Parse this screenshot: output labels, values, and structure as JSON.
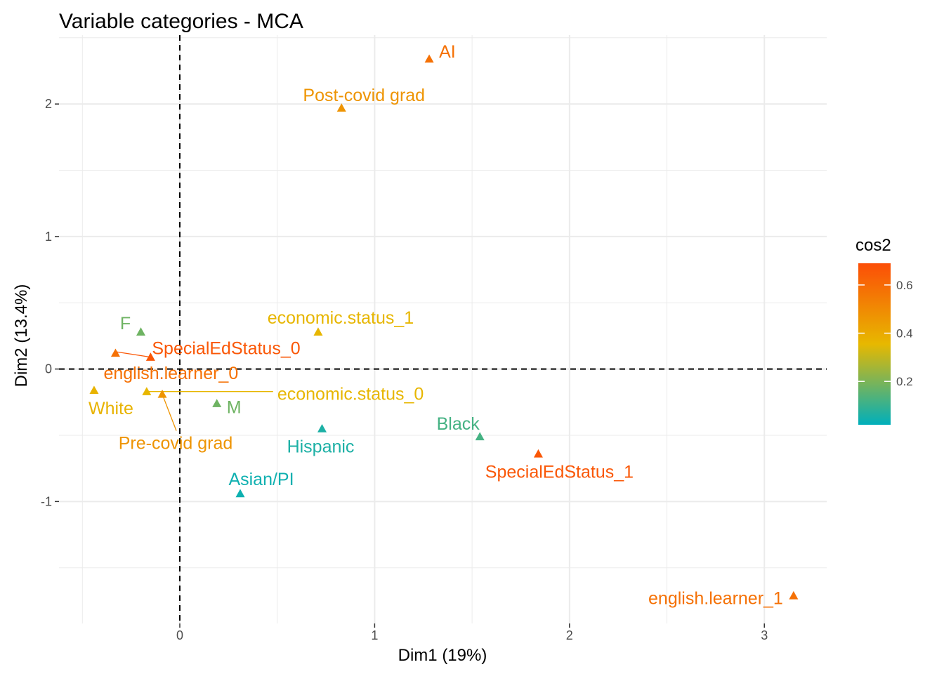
{
  "chart_data": {
    "type": "scatter",
    "title": "Variable categories - MCA",
    "xlabel": "Dim1 (19%)",
    "ylabel": "Dim2 (13.4%)",
    "xlim": [
      -0.62,
      3.32
    ],
    "ylim": [
      -1.92,
      2.52
    ],
    "x_ticks": [
      0,
      1,
      2,
      3
    ],
    "x_tick_labels": [
      "0",
      "1",
      "2",
      "3"
    ],
    "y_ticks": [
      -1,
      0,
      1,
      2
    ],
    "y_tick_labels": [
      "-1",
      "0",
      "1",
      "2"
    ],
    "grid": true,
    "reference_lines": {
      "x": 0,
      "y": 0,
      "style": "dashed"
    },
    "marker": "triangle",
    "color_variable": "cos2",
    "points": [
      {
        "label": "AI",
        "x": 1.28,
        "y": 2.34,
        "cos2": 0.58
      },
      {
        "label": "Post-covid grad",
        "x": 0.83,
        "y": 1.97,
        "cos2": 0.47
      },
      {
        "label": "F",
        "x": -0.2,
        "y": 0.28,
        "cos2": 0.18
      },
      {
        "label": "SpecialEdStatus_0",
        "x": -0.15,
        "y": 0.09,
        "cos2": 0.66
      },
      {
        "label": "economic.status_1",
        "x": 0.71,
        "y": 0.28,
        "cos2": 0.36
      },
      {
        "label": "english.learner_0",
        "x": -0.33,
        "y": 0.12,
        "cos2": 0.58
      },
      {
        "label": "White",
        "x": -0.44,
        "y": -0.16,
        "cos2": 0.37
      },
      {
        "label": "economic.status_0",
        "x": -0.17,
        "y": -0.17,
        "cos2": 0.36
      },
      {
        "label": "Pre-covid grad",
        "x": -0.09,
        "y": -0.19,
        "cos2": 0.47
      },
      {
        "label": "M",
        "x": 0.19,
        "y": -0.26,
        "cos2": 0.18
      },
      {
        "label": "Hispanic",
        "x": 0.73,
        "y": -0.45,
        "cos2": 0.06
      },
      {
        "label": "Black",
        "x": 1.54,
        "y": -0.51,
        "cos2": 0.12
      },
      {
        "label": "SpecialEdStatus_1",
        "x": 1.84,
        "y": -0.64,
        "cos2": 0.66
      },
      {
        "label": "Asian/PI",
        "x": 0.31,
        "y": -0.94,
        "cos2": 0.04
      },
      {
        "label": "english.learner_1",
        "x": 3.15,
        "y": -1.71,
        "cos2": 0.58
      }
    ],
    "legend": {
      "title": "cos2",
      "position": "right",
      "breaks": [
        0.2,
        0.4,
        0.6
      ],
      "break_labels": [
        "0.2",
        "0.4",
        "0.6"
      ],
      "range": [
        0.02,
        0.69
      ],
      "gradient_colors": [
        "#00AFBB",
        "#E7B800",
        "#FC4E07"
      ]
    }
  }
}
